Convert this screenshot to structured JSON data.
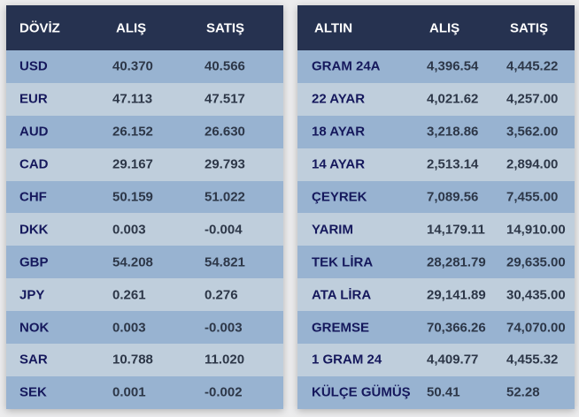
{
  "currency": {
    "headers": [
      "DÖVİZ",
      "ALIŞ",
      "SATIŞ"
    ],
    "rows": [
      [
        "USD",
        "40.370",
        "40.566"
      ],
      [
        "EUR",
        "47.113",
        "47.517"
      ],
      [
        "AUD",
        "26.152",
        "26.630"
      ],
      [
        "CAD",
        "29.167",
        "29.793"
      ],
      [
        "CHF",
        "50.159",
        "51.022"
      ],
      [
        "DKK",
        "0.003",
        "-0.004"
      ],
      [
        "GBP",
        "54.208",
        "54.821"
      ],
      [
        "JPY",
        "0.261",
        "0.276"
      ],
      [
        "NOK",
        "0.003",
        "-0.003"
      ],
      [
        "SAR",
        "10.788",
        "11.020"
      ],
      [
        "SEK",
        "0.001",
        "-0.002"
      ]
    ]
  },
  "gold": {
    "headers": [
      "ALTIN",
      "ALIŞ",
      "SATIŞ"
    ],
    "rows": [
      [
        "GRAM 24A",
        "4,396.54",
        "4,445.22"
      ],
      [
        "22 AYAR",
        "4,021.62",
        "4,257.00"
      ],
      [
        "18 AYAR",
        "3,218.86",
        "3,562.00"
      ],
      [
        "14 AYAR",
        "2,513.14",
        "2,894.00"
      ],
      [
        "ÇEYREK",
        "7,089.56",
        "7,455.00"
      ],
      [
        "YARIM",
        "14,179.11",
        "14,910.00"
      ],
      [
        "TEK LİRA",
        "28,281.79",
        "29,635.00"
      ],
      [
        "ATA LİRA",
        "29,141.89",
        "30,435.00"
      ],
      [
        "GREMSE",
        "70,366.26",
        "74,070.00"
      ],
      [
        "1 GRAM 24",
        "4,409.77",
        "4,455.32"
      ],
      [
        "KÜLÇE GÜMÜŞ",
        "50.41",
        "52.28"
      ]
    ]
  },
  "colors": {
    "header": "#263250",
    "row_odd": "#98b3d1",
    "row_even": "#bfcedc",
    "name_text": "#15185c",
    "value_text": "#2d3748"
  }
}
